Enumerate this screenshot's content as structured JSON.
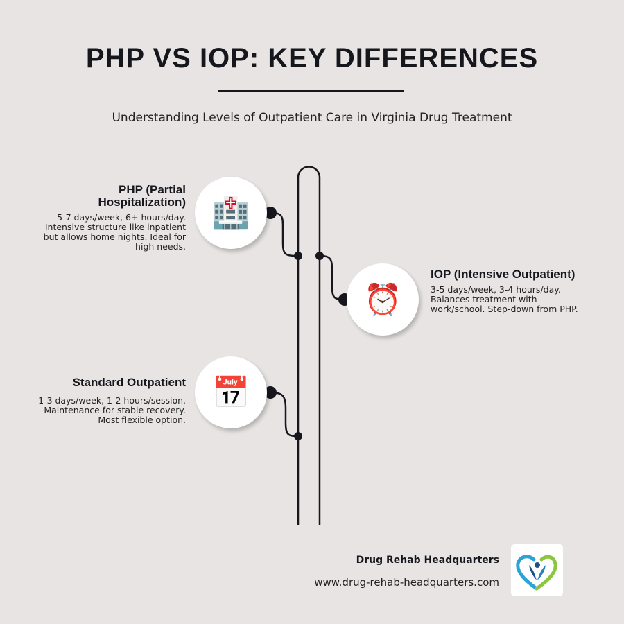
{
  "title": "PHP VS IOP: KEY DIFFERENCES",
  "subtitle": "Understanding Levels of Outpatient Care in Virginia Drug Treatment",
  "items": [
    {
      "heading": "PHP (Partial Hospitalization)",
      "text": "5-7 days/week, 6+ hours/day. Intensive structure like inpatient but allows home nights. Ideal for high needs.",
      "icon": "hospital-icon",
      "glyph": "🏥"
    },
    {
      "heading": "IOP (Intensive Outpatient)",
      "text": "3-5 days/week, 3-4 hours/day. Balances treatment with work/school. Step-down from PHP.",
      "icon": "alarm-clock-icon",
      "glyph": "⏰"
    },
    {
      "heading": "Standard Outpatient",
      "text": "1-3 days/week, 1-2 hours/session. Maintenance for stable recovery. Most flexible option.",
      "icon": "calendar-icon",
      "glyph": "📅"
    }
  ],
  "footer": {
    "brand": "Drug Rehab Headquarters",
    "url": "www.drug-rehab-headquarters.com",
    "logo_colors": [
      "#2ba3d6",
      "#8cc63f",
      "#1f4f8a"
    ]
  }
}
